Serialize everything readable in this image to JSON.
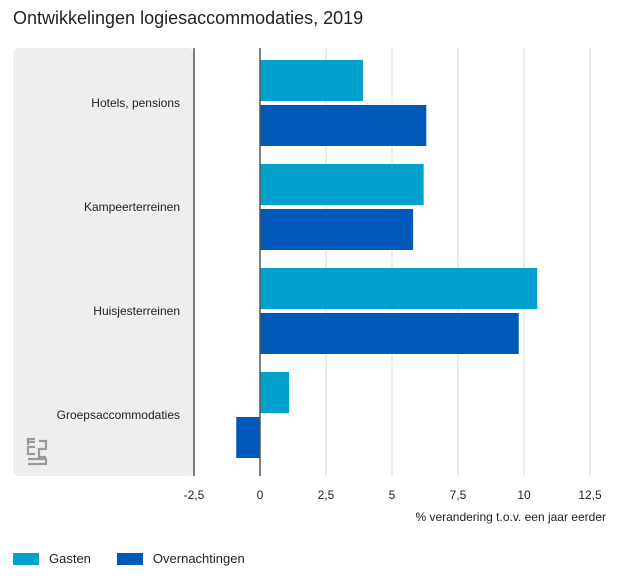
{
  "chart_data": {
    "type": "bar",
    "orientation": "horizontal",
    "title": "Ontwikkelingen logiesaccommodaties, 2019",
    "xlabel": "% verandering t.o.v. een jaar eerder",
    "ylabel": "",
    "categories": [
      "Hotels, pensions",
      "Kampeerterreinen",
      "Huisjesterreinen",
      "Groepsaccommodaties"
    ],
    "series": [
      {
        "name": "Gasten",
        "color": "#00A1CD",
        "values": [
          3.9,
          6.2,
          10.5,
          1.1
        ]
      },
      {
        "name": "Overnachtingen",
        "color": "#0058B8",
        "values": [
          6.3,
          5.8,
          9.8,
          -0.9
        ]
      }
    ],
    "xlim": [
      -2.5,
      12.5
    ],
    "xticks": [
      -2.5,
      0,
      2.5,
      5,
      7.5,
      10,
      12.5
    ],
    "xtick_labels": [
      "-2,5",
      "0",
      "2,5",
      "5",
      "7,5",
      "10",
      "12,5"
    ],
    "grid": true,
    "legend_position": "bottom-left",
    "logo": "cbs-logo"
  }
}
